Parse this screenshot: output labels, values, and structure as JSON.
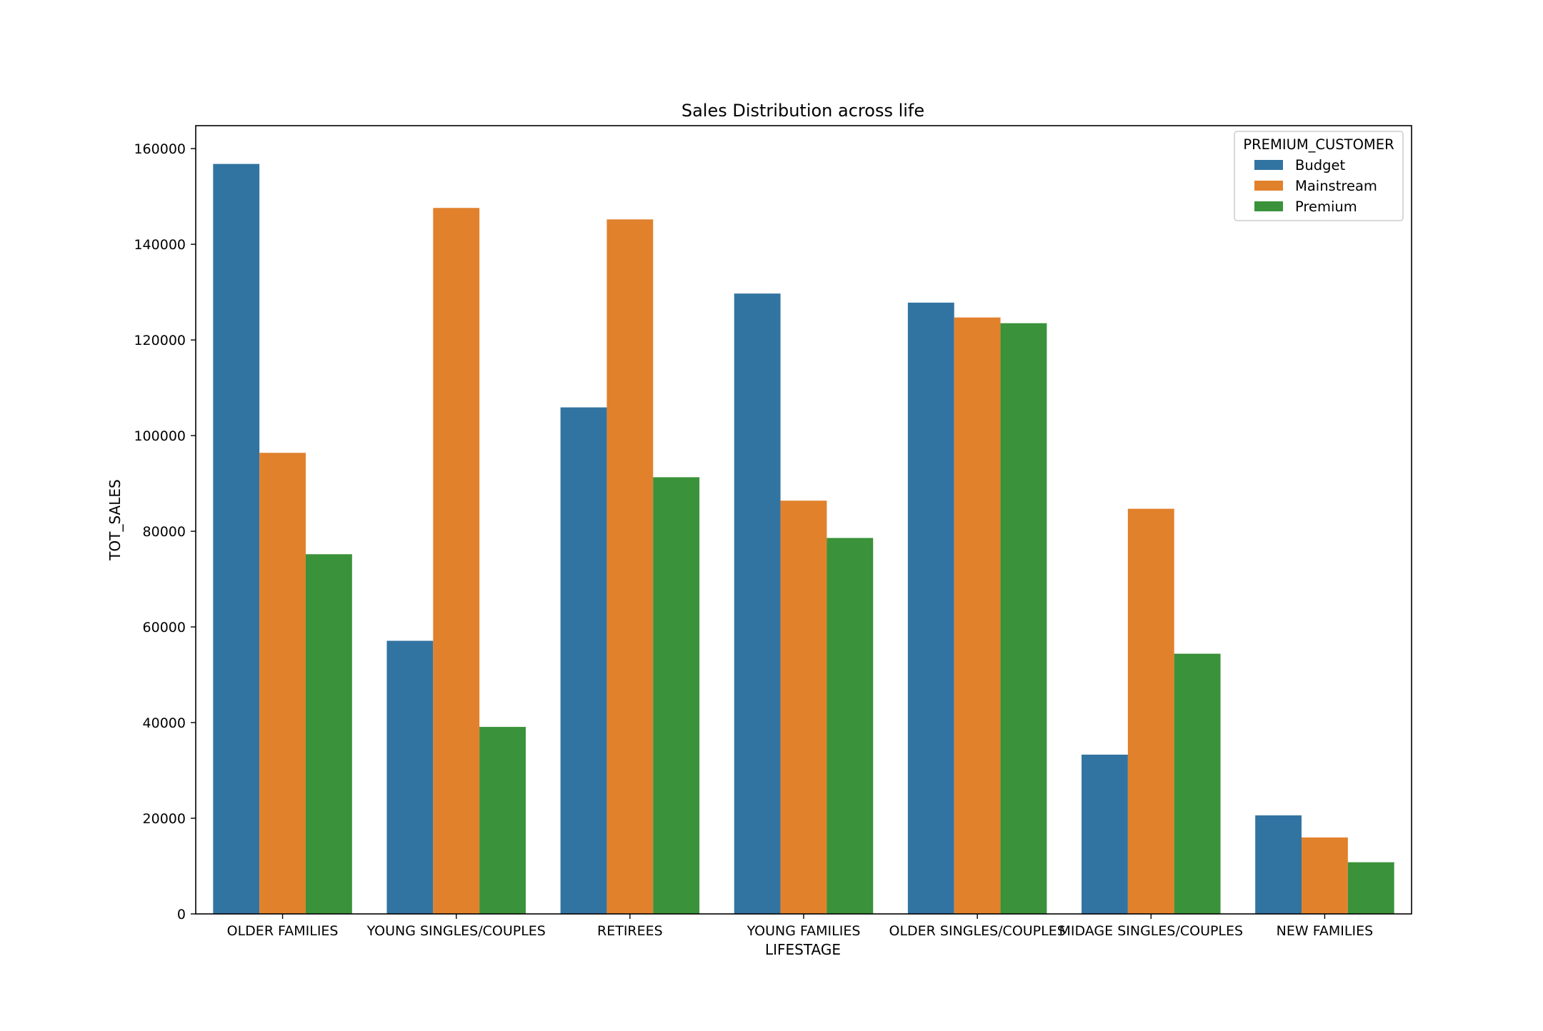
{
  "chart_data": {
    "type": "bar",
    "title": "Sales Distribution across life",
    "xlabel": "LIFESTAGE",
    "ylabel": "TOT_SALES",
    "categories": [
      "OLDER FAMILIES",
      "YOUNG SINGLES/COUPLES",
      "RETIREES",
      "YOUNG FAMILIES",
      "OLDER SINGLES/COUPLES",
      "MIDAGE SINGLES/COUPLES",
      "NEW FAMILIES"
    ],
    "series": [
      {
        "name": "Budget",
        "color": "#3274a1",
        "values": [
          156800,
          57100,
          105900,
          129700,
          127800,
          33300,
          20600
        ]
      },
      {
        "name": "Mainstream",
        "color": "#e1812c",
        "values": [
          96400,
          147600,
          145200,
          86400,
          124700,
          84700,
          15980
        ]
      },
      {
        "name": "Premium",
        "color": "#3a923a",
        "values": [
          75200,
          39100,
          91300,
          78600,
          123500,
          54400,
          10800
        ]
      }
    ],
    "ylim": [
      0,
      164800
    ],
    "yticks": [
      0,
      20000,
      40000,
      60000,
      80000,
      100000,
      120000,
      140000,
      160000
    ],
    "legend": {
      "title": "PREMIUM_CUSTOMER",
      "placement": "upper right"
    },
    "grid": false
  }
}
